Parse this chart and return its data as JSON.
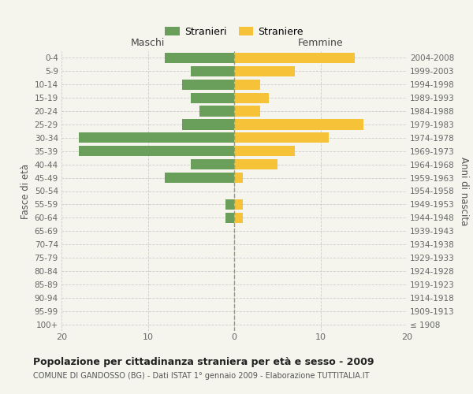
{
  "age_groups": [
    "100+",
    "95-99",
    "90-94",
    "85-89",
    "80-84",
    "75-79",
    "70-74",
    "65-69",
    "60-64",
    "55-59",
    "50-54",
    "45-49",
    "40-44",
    "35-39",
    "30-34",
    "25-29",
    "20-24",
    "15-19",
    "10-14",
    "5-9",
    "0-4"
  ],
  "birth_years": [
    "≤ 1908",
    "1909-1913",
    "1914-1918",
    "1919-1923",
    "1924-1928",
    "1929-1933",
    "1934-1938",
    "1939-1943",
    "1944-1948",
    "1949-1953",
    "1954-1958",
    "1959-1963",
    "1964-1968",
    "1969-1973",
    "1974-1978",
    "1979-1983",
    "1984-1988",
    "1989-1993",
    "1994-1998",
    "1999-2003",
    "2004-2008"
  ],
  "maschi": [
    0,
    0,
    0,
    0,
    0,
    0,
    0,
    0,
    1,
    1,
    0,
    8,
    5,
    18,
    18,
    6,
    4,
    5,
    6,
    5,
    8
  ],
  "femmine": [
    0,
    0,
    0,
    0,
    0,
    0,
    0,
    0,
    1,
    1,
    0,
    1,
    5,
    7,
    11,
    15,
    3,
    4,
    3,
    7,
    14
  ],
  "color_maschi": "#6a9e5b",
  "color_femmine": "#f5c238",
  "title": "Popolazione per cittadinanza straniera per età e sesso - 2009",
  "subtitle": "COMUNE DI GANDOSSO (BG) - Dati ISTAT 1° gennaio 2009 - Elaborazione TUTTITALIA.IT",
  "xlabel_left": "Maschi",
  "xlabel_right": "Femmine",
  "ylabel_left": "Fasce di età",
  "ylabel_right": "Anni di nascita",
  "legend_maschi": "Stranieri",
  "legend_femmine": "Straniere",
  "xlim": 20,
  "background_color": "#f5f5ee",
  "grid_color": "#cccccc"
}
